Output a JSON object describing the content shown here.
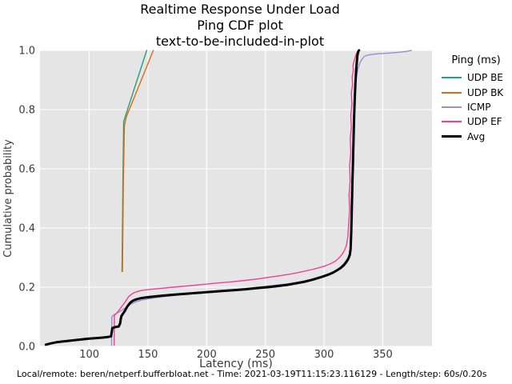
{
  "header": {
    "title_line1": "Realtime Response Under Load",
    "title_line2": "Ping CDF plot",
    "title_line3": "text-to-be-included-in-plot"
  },
  "footer": {
    "text": "Local/remote: beren/netperf.bufferbloat.net - Time: 2021-03-19T11:15:23.116129 - Length/step: 60s/0.20s"
  },
  "colors": {
    "panel_bg": "#e5e5e5",
    "grid": "#ffffff",
    "tick_text": "#3a3a3a",
    "axis_label_text": "#3a3a3a"
  },
  "chart_data": {
    "type": "line",
    "title": [
      "Realtime Response Under Load",
      "Ping CDF plot",
      "text-to-be-included-in-plot"
    ],
    "xlabel": "Latency (ms)",
    "ylabel": "Cumulative probability",
    "xlim": [
      58,
      392
    ],
    "ylim": [
      0,
      1
    ],
    "xticks": [
      100,
      150,
      200,
      250,
      300,
      350
    ],
    "xtick_labels": [
      "100",
      "150",
      "200",
      "250",
      "300",
      "350"
    ],
    "yticks": [
      0.0,
      0.2,
      0.4,
      0.6,
      0.8,
      1.0
    ],
    "ytick_labels": [
      "0.0",
      "0.2",
      "0.4",
      "0.6",
      "0.8",
      "1.0"
    ],
    "grid": true,
    "legend_title": "Ping (ms)",
    "legend_position": "right",
    "series": [
      {
        "name": "UDP BE",
        "color": "#20a183",
        "width": 1.4,
        "points": [
          [
            127.9,
            0.253
          ],
          [
            128.6,
            0.55
          ],
          [
            129.3,
            0.76
          ],
          [
            148.9,
            1.0
          ]
        ]
      },
      {
        "name": "UDP BK",
        "color": "#e0690b",
        "width": 1.4,
        "points": [
          [
            128.3,
            0.253
          ],
          [
            129.0,
            0.55
          ],
          [
            129.9,
            0.745
          ],
          [
            131.5,
            0.775
          ],
          [
            154.6,
            1.0
          ]
        ]
      },
      {
        "name": "ICMP",
        "color": "#968fd2",
        "width": 1.4,
        "points": [
          [
            119,
            0.003
          ],
          [
            119.2,
            0.1
          ],
          [
            121,
            0.107
          ],
          [
            124,
            0.113
          ],
          [
            127,
            0.12
          ],
          [
            130,
            0.128
          ],
          [
            133,
            0.136
          ],
          [
            136,
            0.144
          ],
          [
            140,
            0.151
          ],
          [
            145,
            0.157
          ],
          [
            152,
            0.162
          ],
          [
            161,
            0.167
          ],
          [
            171,
            0.172
          ],
          [
            183,
            0.177
          ],
          [
            196,
            0.183
          ],
          [
            211,
            0.188
          ],
          [
            226,
            0.193
          ],
          [
            241,
            0.199
          ],
          [
            255,
            0.205
          ],
          [
            268,
            0.211
          ],
          [
            279,
            0.218
          ],
          [
            289,
            0.226
          ],
          [
            297,
            0.234
          ],
          [
            304,
            0.244
          ],
          [
            309,
            0.254
          ],
          [
            313,
            0.264
          ],
          [
            316,
            0.276
          ],
          [
            318.5,
            0.288
          ],
          [
            320.5,
            0.3
          ],
          [
            322,
            0.315
          ],
          [
            323,
            0.34
          ],
          [
            323.6,
            0.45
          ],
          [
            324.2,
            0.56
          ],
          [
            324.8,
            0.67
          ],
          [
            325.4,
            0.76
          ],
          [
            326,
            0.83
          ],
          [
            326.8,
            0.88
          ],
          [
            327.8,
            0.915
          ],
          [
            329,
            0.94
          ],
          [
            330.5,
            0.957
          ],
          [
            332,
            0.968
          ],
          [
            334,
            0.978
          ],
          [
            336,
            0.983
          ],
          [
            340,
            0.986
          ],
          [
            347,
            0.989
          ],
          [
            356,
            0.991
          ],
          [
            365,
            0.994
          ],
          [
            371,
            0.997
          ],
          [
            374.5,
            1.0
          ]
        ]
      },
      {
        "name": "UDP EF",
        "color": "#ee4097",
        "width": 1.4,
        "points": [
          [
            121.2,
            0.004
          ],
          [
            121.4,
            0.105
          ],
          [
            123,
            0.111
          ],
          [
            124.5,
            0.118
          ],
          [
            126,
            0.126
          ],
          [
            127.5,
            0.134
          ],
          [
            129,
            0.142
          ],
          [
            130.5,
            0.15
          ],
          [
            132,
            0.159
          ],
          [
            133.5,
            0.168
          ],
          [
            135.5,
            0.175
          ],
          [
            138,
            0.181
          ],
          [
            141.5,
            0.186
          ],
          [
            146,
            0.19
          ],
          [
            153,
            0.193
          ],
          [
            161,
            0.196
          ],
          [
            171,
            0.2
          ],
          [
            183,
            0.204
          ],
          [
            196,
            0.209
          ],
          [
            209,
            0.214
          ],
          [
            221,
            0.218
          ],
          [
            233,
            0.223
          ],
          [
            244,
            0.228
          ],
          [
            254,
            0.234
          ],
          [
            263,
            0.239
          ],
          [
            272,
            0.245
          ],
          [
            280,
            0.251
          ],
          [
            288,
            0.258
          ],
          [
            295,
            0.265
          ],
          [
            301,
            0.272
          ],
          [
            306,
            0.28
          ],
          [
            310,
            0.289
          ],
          [
            313,
            0.3
          ],
          [
            315.5,
            0.312
          ],
          [
            317.5,
            0.325
          ],
          [
            319,
            0.34
          ],
          [
            320.3,
            0.37
          ],
          [
            321,
            0.41
          ],
          [
            321.8,
            0.46
          ],
          [
            321.3,
            0.51
          ],
          [
            322.3,
            0.56
          ],
          [
            321.8,
            0.61
          ],
          [
            322.8,
            0.655
          ],
          [
            322.3,
            0.7
          ],
          [
            323.3,
            0.74
          ],
          [
            322.8,
            0.78
          ],
          [
            323.8,
            0.82
          ],
          [
            323.3,
            0.855
          ],
          [
            324.3,
            0.885
          ],
          [
            324,
            0.91
          ],
          [
            325,
            0.933
          ],
          [
            324.7,
            0.95
          ],
          [
            325.7,
            0.965
          ],
          [
            326.6,
            0.978
          ],
          [
            327.6,
            0.989
          ],
          [
            329,
            0.996
          ],
          [
            330.5,
            1.0
          ]
        ]
      },
      {
        "name": "Avg",
        "color": "#000000",
        "width": 3,
        "points": [
          [
            63,
            0.006
          ],
          [
            67,
            0.01
          ],
          [
            72,
            0.014
          ],
          [
            78,
            0.017
          ],
          [
            85,
            0.02
          ],
          [
            92,
            0.023
          ],
          [
            99,
            0.026
          ],
          [
            106,
            0.028
          ],
          [
            112,
            0.03
          ],
          [
            116,
            0.032
          ],
          [
            118.5,
            0.034
          ],
          [
            119.2,
            0.05
          ],
          [
            119.6,
            0.062
          ],
          [
            122,
            0.065
          ],
          [
            125,
            0.067
          ],
          [
            126.3,
            0.078
          ],
          [
            126.8,
            0.092
          ],
          [
            127.3,
            0.102
          ],
          [
            128.3,
            0.108
          ],
          [
            129.3,
            0.114
          ],
          [
            130.3,
            0.12
          ],
          [
            131.3,
            0.127
          ],
          [
            132.3,
            0.134
          ],
          [
            133.5,
            0.141
          ],
          [
            135,
            0.148
          ],
          [
            137,
            0.154
          ],
          [
            140,
            0.159
          ],
          [
            144,
            0.163
          ],
          [
            149,
            0.166
          ],
          [
            156,
            0.169
          ],
          [
            164,
            0.172
          ],
          [
            173,
            0.175
          ],
          [
            183,
            0.178
          ],
          [
            193,
            0.181
          ],
          [
            203,
            0.184
          ],
          [
            213,
            0.187
          ],
          [
            223,
            0.19
          ],
          [
            233,
            0.193
          ],
          [
            243,
            0.197
          ],
          [
            252,
            0.2
          ],
          [
            261,
            0.204
          ],
          [
            269,
            0.208
          ],
          [
            276,
            0.213
          ],
          [
            283,
            0.218
          ],
          [
            289,
            0.224
          ],
          [
            294,
            0.23
          ],
          [
            299,
            0.236
          ],
          [
            304,
            0.243
          ],
          [
            308,
            0.25
          ],
          [
            311.5,
            0.258
          ],
          [
            314.5,
            0.266
          ],
          [
            317,
            0.275
          ],
          [
            319,
            0.285
          ],
          [
            320.7,
            0.296
          ],
          [
            322,
            0.31
          ],
          [
            322.7,
            0.33
          ],
          [
            323.2,
            0.39
          ],
          [
            323.7,
            0.47
          ],
          [
            324.2,
            0.55
          ],
          [
            324.7,
            0.63
          ],
          [
            325.2,
            0.71
          ],
          [
            325.7,
            0.78
          ],
          [
            326.2,
            0.84
          ],
          [
            326.8,
            0.89
          ],
          [
            327.3,
            0.93
          ],
          [
            327.9,
            0.96
          ],
          [
            328.4,
            0.982
          ],
          [
            329,
            0.995
          ],
          [
            329.8,
            1.0
          ]
        ]
      }
    ],
    "legend": {
      "title": "Ping (ms)",
      "entries": [
        {
          "label": "UDP BE",
          "color": "#20a183",
          "lw": 2
        },
        {
          "label": "UDP BK",
          "color": "#e0690b",
          "lw": 2
        },
        {
          "label": "ICMP",
          "color": "#968fd2",
          "lw": 2
        },
        {
          "label": "UDP EF",
          "color": "#ee4097",
          "lw": 2
        },
        {
          "label": "Avg",
          "color": "#000000",
          "lw": 3
        }
      ]
    }
  }
}
